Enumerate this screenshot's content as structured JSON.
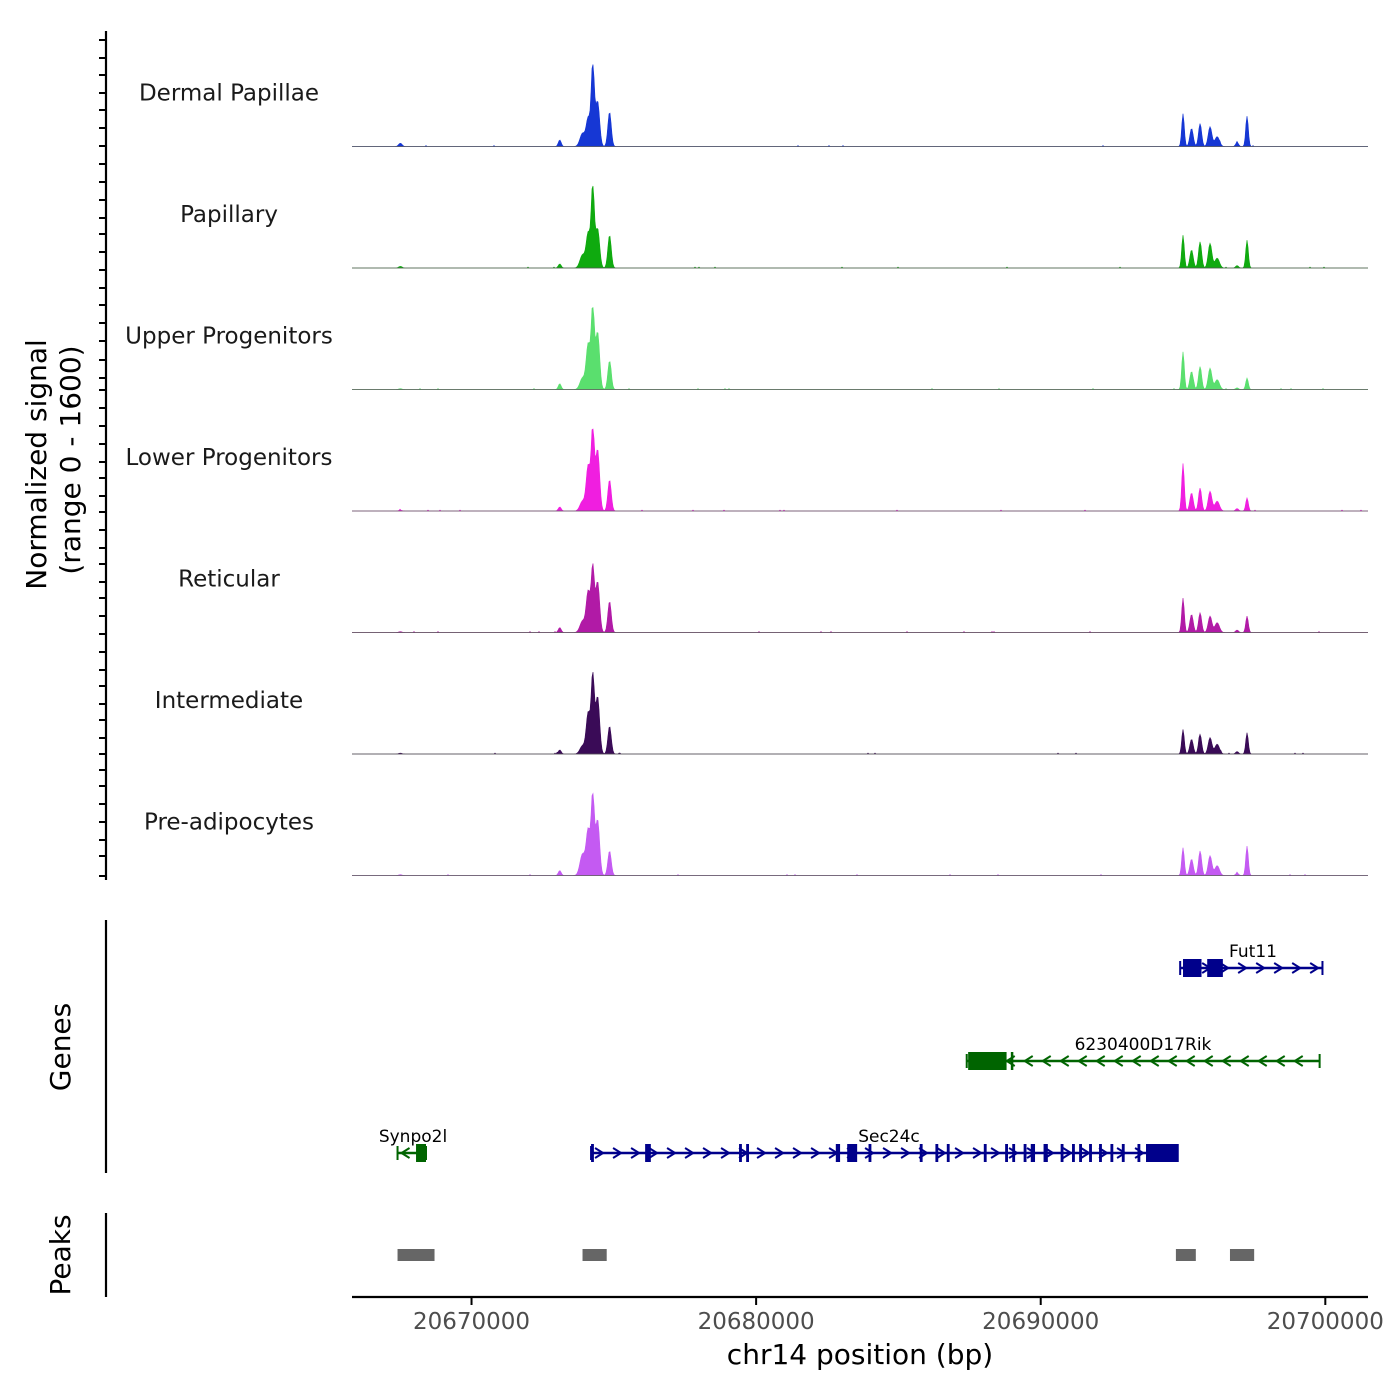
{
  "chart_data": {
    "type": "area",
    "region": {
      "chromosome": "chr14",
      "start": 20665800,
      "end": 20701500
    },
    "y_axis": {
      "title_line1": "Normalized signal",
      "title_line2": "(range 0 - 1600)",
      "range": [
        0,
        1600
      ]
    },
    "x_axis": {
      "title": "chr14 position (bp)",
      "ticks": [
        20670000,
        20680000,
        20690000,
        20700000
      ],
      "tick_labels": [
        "20670000",
        "20680000",
        "20690000",
        "20700000"
      ]
    },
    "tracks": [
      {
        "name": "Dermal Papillae",
        "color": "#1637D4",
        "peaks": [
          [
            20667500,
            0.04,
            60
          ],
          [
            20673100,
            0.08,
            50
          ],
          [
            20673900,
            0.16,
            90
          ],
          [
            20674100,
            0.34,
            70
          ],
          [
            20674260,
            1.0,
            55
          ],
          [
            20674430,
            0.55,
            70
          ],
          [
            20674850,
            0.42,
            60
          ],
          [
            20695000,
            0.4,
            45
          ],
          [
            20695300,
            0.22,
            60
          ],
          [
            20695600,
            0.28,
            55
          ],
          [
            20695950,
            0.24,
            65
          ],
          [
            20696200,
            0.12,
            80
          ],
          [
            20696900,
            0.05,
            50
          ],
          [
            20697250,
            0.37,
            45
          ]
        ]
      },
      {
        "name": "Papillary",
        "color": "#0FAA0F",
        "peaks": [
          [
            20667500,
            0.02,
            60
          ],
          [
            20673100,
            0.05,
            50
          ],
          [
            20673900,
            0.16,
            90
          ],
          [
            20674100,
            0.42,
            70
          ],
          [
            20674260,
            1.0,
            55
          ],
          [
            20674430,
            0.48,
            70
          ],
          [
            20674850,
            0.4,
            60
          ],
          [
            20695000,
            0.4,
            45
          ],
          [
            20695300,
            0.22,
            60
          ],
          [
            20695600,
            0.32,
            55
          ],
          [
            20695950,
            0.3,
            65
          ],
          [
            20696200,
            0.12,
            80
          ],
          [
            20696900,
            0.03,
            50
          ],
          [
            20697250,
            0.34,
            45
          ]
        ]
      },
      {
        "name": "Upper Progenitors",
        "color": "#5ADF6E",
        "peaks": [
          [
            20667500,
            0.01,
            60
          ],
          [
            20673100,
            0.07,
            50
          ],
          [
            20673900,
            0.14,
            90
          ],
          [
            20674100,
            0.55,
            70
          ],
          [
            20674260,
            1.0,
            55
          ],
          [
            20674430,
            0.7,
            70
          ],
          [
            20674850,
            0.35,
            60
          ],
          [
            20695000,
            0.46,
            45
          ],
          [
            20695300,
            0.22,
            60
          ],
          [
            20695600,
            0.28,
            55
          ],
          [
            20695950,
            0.26,
            65
          ],
          [
            20696200,
            0.12,
            80
          ],
          [
            20696900,
            0.02,
            50
          ],
          [
            20697250,
            0.14,
            45
          ]
        ]
      },
      {
        "name": "Lower Progenitors",
        "color": "#F01EE0",
        "peaks": [
          [
            20667500,
            0.01,
            60
          ],
          [
            20673100,
            0.05,
            50
          ],
          [
            20673900,
            0.12,
            90
          ],
          [
            20674100,
            0.55,
            70
          ],
          [
            20674260,
            1.0,
            55
          ],
          [
            20674430,
            0.75,
            70
          ],
          [
            20674850,
            0.38,
            60
          ],
          [
            20695000,
            0.58,
            45
          ],
          [
            20695300,
            0.22,
            60
          ],
          [
            20695600,
            0.28,
            55
          ],
          [
            20695950,
            0.24,
            65
          ],
          [
            20696200,
            0.12,
            80
          ],
          [
            20696900,
            0.03,
            50
          ],
          [
            20697250,
            0.16,
            45
          ]
        ]
      },
      {
        "name": "Reticular",
        "color": "#B11AA6",
        "peaks": [
          [
            20667500,
            0.01,
            60
          ],
          [
            20673100,
            0.06,
            50
          ],
          [
            20673900,
            0.14,
            90
          ],
          [
            20674100,
            0.5,
            70
          ],
          [
            20674260,
            0.78,
            55
          ],
          [
            20674430,
            0.62,
            70
          ],
          [
            20674850,
            0.38,
            60
          ],
          [
            20695000,
            0.42,
            45
          ],
          [
            20695300,
            0.22,
            60
          ],
          [
            20695600,
            0.24,
            55
          ],
          [
            20695950,
            0.2,
            65
          ],
          [
            20696200,
            0.12,
            80
          ],
          [
            20696900,
            0.03,
            50
          ],
          [
            20697250,
            0.2,
            45
          ]
        ]
      },
      {
        "name": "Intermediate",
        "color": "#3A0B57",
        "peaks": [
          [
            20667500,
            0.01,
            60
          ],
          [
            20673100,
            0.05,
            50
          ],
          [
            20673900,
            0.1,
            90
          ],
          [
            20674100,
            0.5,
            70
          ],
          [
            20674260,
            0.95,
            55
          ],
          [
            20674430,
            0.7,
            70
          ],
          [
            20674850,
            0.34,
            60
          ],
          [
            20695000,
            0.3,
            45
          ],
          [
            20695300,
            0.18,
            60
          ],
          [
            20695600,
            0.24,
            55
          ],
          [
            20695950,
            0.2,
            65
          ],
          [
            20696200,
            0.12,
            80
          ],
          [
            20696900,
            0.03,
            50
          ],
          [
            20697250,
            0.26,
            45
          ]
        ]
      },
      {
        "name": "Pre-adipocytes",
        "color": "#C45AF2",
        "peaks": [
          [
            20667500,
            0.01,
            60
          ],
          [
            20673100,
            0.06,
            50
          ],
          [
            20673900,
            0.26,
            90
          ],
          [
            20674100,
            0.55,
            70
          ],
          [
            20674260,
            0.98,
            55
          ],
          [
            20674430,
            0.68,
            70
          ],
          [
            20674850,
            0.3,
            60
          ],
          [
            20695000,
            0.34,
            45
          ],
          [
            20695300,
            0.2,
            60
          ],
          [
            20695600,
            0.3,
            55
          ],
          [
            20695950,
            0.24,
            65
          ],
          [
            20696200,
            0.12,
            80
          ],
          [
            20696900,
            0.03,
            50
          ],
          [
            20697250,
            0.36,
            45
          ]
        ]
      }
    ],
    "genes_section_label": "Genes",
    "genes": [
      {
        "name": "Fut11",
        "strand": "+",
        "row": 1,
        "color": "#00008B",
        "start": 20694900,
        "end": 20699900,
        "exons": [
          [
            20695000,
            20695650
          ],
          [
            20695850,
            20696400
          ]
        ]
      },
      {
        "name": "6230400D17Rik",
        "strand": "-",
        "row": 2,
        "color": "#006400",
        "start": 20687400,
        "end": 20699800,
        "exons": [
          [
            20687450,
            20688800
          ],
          [
            20688950,
            20689000
          ]
        ]
      },
      {
        "name": "Synpo2l",
        "strand": "-",
        "row": 3,
        "color": "#006400",
        "start": 20667400,
        "end": 20668400,
        "exons": [
          [
            20668050,
            20668400
          ]
        ]
      },
      {
        "name": "Sec24c",
        "strand": "+",
        "row": 3,
        "color": "#00008B",
        "start": 20674200,
        "end": 20694800,
        "exons": [
          [
            20674200,
            20674300
          ],
          [
            20676100,
            20676300
          ],
          [
            20679400,
            20679500
          ],
          [
            20679650,
            20679750
          ],
          [
            20682800,
            20682950
          ],
          [
            20683200,
            20683550
          ],
          [
            20683950,
            20684050
          ],
          [
            20685750,
            20685850
          ],
          [
            20686300,
            20686400
          ],
          [
            20686700,
            20686800
          ],
          [
            20688000,
            20688100
          ],
          [
            20688750,
            20688850
          ],
          [
            20689000,
            20689100
          ],
          [
            20689400,
            20689500
          ],
          [
            20689650,
            20689800
          ],
          [
            20690100,
            20690250
          ],
          [
            20690700,
            20690800
          ],
          [
            20691100,
            20691200
          ],
          [
            20691350,
            20691450
          ],
          [
            20691700,
            20691800
          ],
          [
            20692050,
            20692150
          ],
          [
            20692450,
            20692550
          ],
          [
            20692850,
            20692950
          ],
          [
            20693400,
            20693500
          ],
          [
            20693700,
            20694850
          ]
        ]
      }
    ],
    "peaks_section_label": "Peaks",
    "peak_regions": [
      [
        20667400,
        20668700
      ],
      [
        20673900,
        20674750
      ],
      [
        20694750,
        20695450
      ],
      [
        20696650,
        20697500
      ]
    ]
  }
}
